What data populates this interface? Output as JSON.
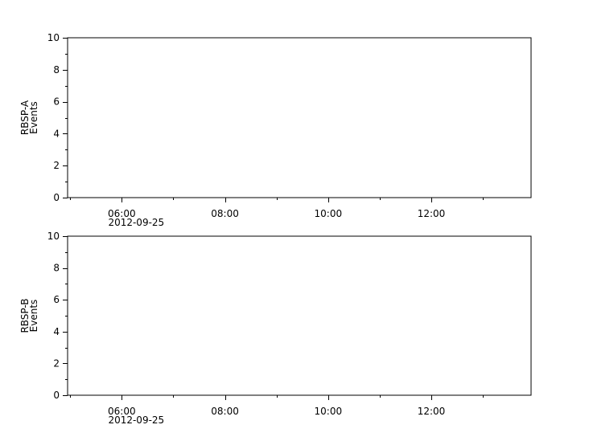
{
  "chart_data": [
    {
      "type": "line",
      "ylabel": [
        "RBSP-A",
        "Events"
      ],
      "ylim": [
        0,
        10
      ],
      "yticks": [
        "0",
        "2",
        "4",
        "6",
        "8",
        "10"
      ],
      "xlim": [
        "2012-09-25 04:57",
        "2012-09-25 13:56"
      ],
      "xticks": [
        "06:00",
        "08:00",
        "10:00",
        "12:00"
      ],
      "xdate_label": "2012-09-25",
      "series": [],
      "grid": false
    },
    {
      "type": "line",
      "ylabel": [
        "RBSP-B",
        "Events"
      ],
      "ylim": [
        0,
        10
      ],
      "yticks": [
        "0",
        "2",
        "4",
        "6",
        "8",
        "10"
      ],
      "xlim": [
        "2012-09-25 04:57",
        "2012-09-25 13:56"
      ],
      "xticks": [
        "06:00",
        "08:00",
        "10:00",
        "12:00"
      ],
      "xdate_label": "2012-09-25",
      "series": [],
      "grid": false
    }
  ]
}
